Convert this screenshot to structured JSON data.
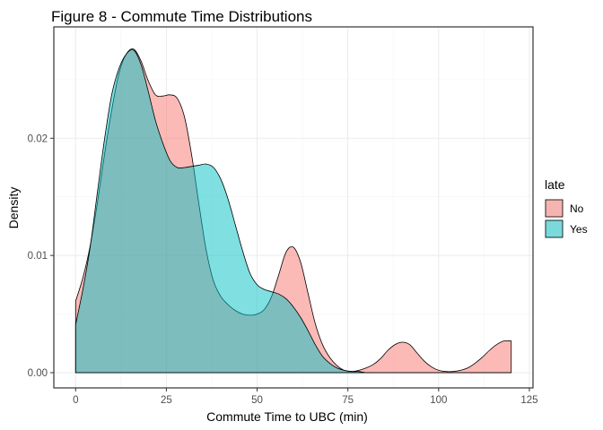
{
  "chart_data": {
    "type": "area",
    "title": "Figure 8 - Commute Time Distributions",
    "xlabel": "Commute Time to UBC (min)",
    "ylabel": "Density",
    "xlim": [
      -6,
      126
    ],
    "ylim": [
      -0.0013,
      0.0295
    ],
    "x_ticks": [
      0,
      25,
      50,
      75,
      100,
      125
    ],
    "x_tick_labels": [
      "0",
      "25",
      "50",
      "75",
      "100",
      "125"
    ],
    "y_ticks": [
      0.0,
      0.01,
      0.02
    ],
    "y_tick_labels": [
      "0.00",
      "0.01",
      "0.02"
    ],
    "grid": true,
    "legend": {
      "title": "late",
      "position": "right"
    },
    "series": [
      {
        "name": "No",
        "color": "#F8766D",
        "x": [
          0,
          2,
          4,
          6,
          8,
          10,
          12,
          14,
          16,
          18,
          20,
          22,
          24,
          26,
          28,
          30,
          32,
          34,
          36,
          38,
          40,
          42,
          44,
          46,
          48,
          50,
          52,
          54,
          56,
          58,
          60,
          62,
          64,
          66,
          68,
          70,
          72,
          74,
          76,
          78,
          80,
          82,
          84,
          86,
          88,
          90,
          92,
          94,
          96,
          98,
          100,
          102,
          104,
          106,
          108,
          110,
          112,
          114,
          116,
          118,
          120
        ],
        "values": [
          0.0061,
          0.0081,
          0.0108,
          0.0145,
          0.0187,
          0.0225,
          0.0256,
          0.0272,
          0.0276,
          0.0266,
          0.0249,
          0.0237,
          0.0236,
          0.0237,
          0.0234,
          0.0218,
          0.0185,
          0.0143,
          0.0104,
          0.0078,
          0.0065,
          0.0058,
          0.0053,
          0.005,
          0.0049,
          0.005,
          0.0054,
          0.0065,
          0.0084,
          0.0103,
          0.0107,
          0.0094,
          0.0068,
          0.0042,
          0.0024,
          0.0013,
          0.0006,
          0.0002,
          0.0001,
          0.0002,
          0.0004,
          0.0007,
          0.0012,
          0.0019,
          0.0024,
          0.0026,
          0.0024,
          0.0017,
          0.001,
          0.0005,
          0.0002,
          0.0001,
          0.0001,
          0.0002,
          0.0004,
          0.0008,
          0.0013,
          0.0019,
          0.0024,
          0.0027,
          0.0027
        ]
      },
      {
        "name": "Yes",
        "color": "#00BFC4",
        "x": [
          0,
          2,
          4,
          6,
          8,
          10,
          12,
          14,
          16,
          18,
          20,
          22,
          24,
          26,
          28,
          30,
          32,
          34,
          36,
          38,
          40,
          42,
          44,
          46,
          48,
          50,
          52,
          54,
          56,
          58,
          60,
          62,
          64,
          66,
          68,
          70,
          72,
          74,
          76,
          78,
          80,
          82,
          84,
          86,
          88,
          90,
          92,
          94,
          96,
          98,
          100,
          102,
          104,
          106,
          108,
          110,
          112,
          114,
          116,
          118,
          120
        ],
        "values": [
          0.0041,
          0.0071,
          0.0107,
          0.0154,
          0.02,
          0.0238,
          0.026,
          0.0272,
          0.0275,
          0.0263,
          0.024,
          0.0215,
          0.0196,
          0.0181,
          0.0175,
          0.0175,
          0.0176,
          0.0177,
          0.0178,
          0.0175,
          0.0165,
          0.0148,
          0.0126,
          0.0104,
          0.0085,
          0.0075,
          0.0071,
          0.0069,
          0.0067,
          0.0063,
          0.0056,
          0.0047,
          0.0036,
          0.0024,
          0.0014,
          0.0008,
          0.0004,
          0.0002,
          0.0001,
          0.0001,
          0.0,
          0.0,
          0.0,
          0.0,
          0.0,
          0.0,
          0.0,
          0.0,
          0.0,
          0.0,
          0.0,
          0.0,
          0.0,
          0.0,
          0.0,
          0.0,
          0.0,
          0.0,
          0.0,
          0.0,
          0.0
        ]
      }
    ]
  }
}
